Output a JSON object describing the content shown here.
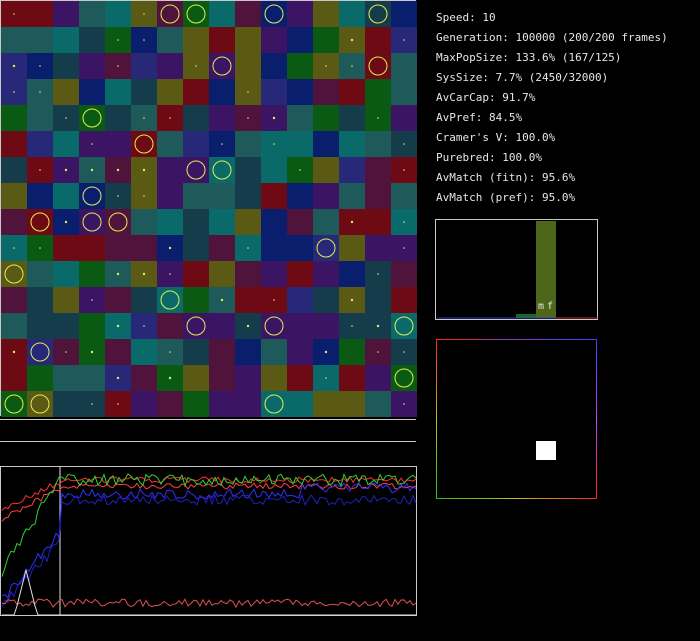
{
  "stats": {
    "speed": "Speed: 10",
    "generation": "Generation: 100000 (200/200 frames)",
    "max_pop_size": "MaxPopSize: 133.6% (167/125)",
    "sys_size": "SysSize: 7.7% (2450/32000)",
    "av_car_cap": "AvCarCap: 91.7%",
    "av_pref": "AvPref: 84.5%",
    "cramers_v": "Cramer's V: 100.0%",
    "purebred": "Purebred: 100.0%",
    "av_match_fitn": "AvMatch (fitn): 95.6%",
    "av_match_pref": "AvMatch (pref): 95.0%"
  },
  "histogram": {
    "label_m": "m",
    "label_f": "f",
    "bar_color": "#4d6619"
  },
  "colors": {
    "panel_border": "#c8c8c8",
    "circle": "#e0f050",
    "pref_square": "#ffffff"
  },
  "grid_palette": [
    "#0a6a6a",
    "#143c4b",
    "#5a5a14",
    "#0a5a14",
    "#282878",
    "#6e0a14",
    "#3c1464",
    "#0a1e6e",
    "#1e5a5a",
    "#50143c"
  ]
}
